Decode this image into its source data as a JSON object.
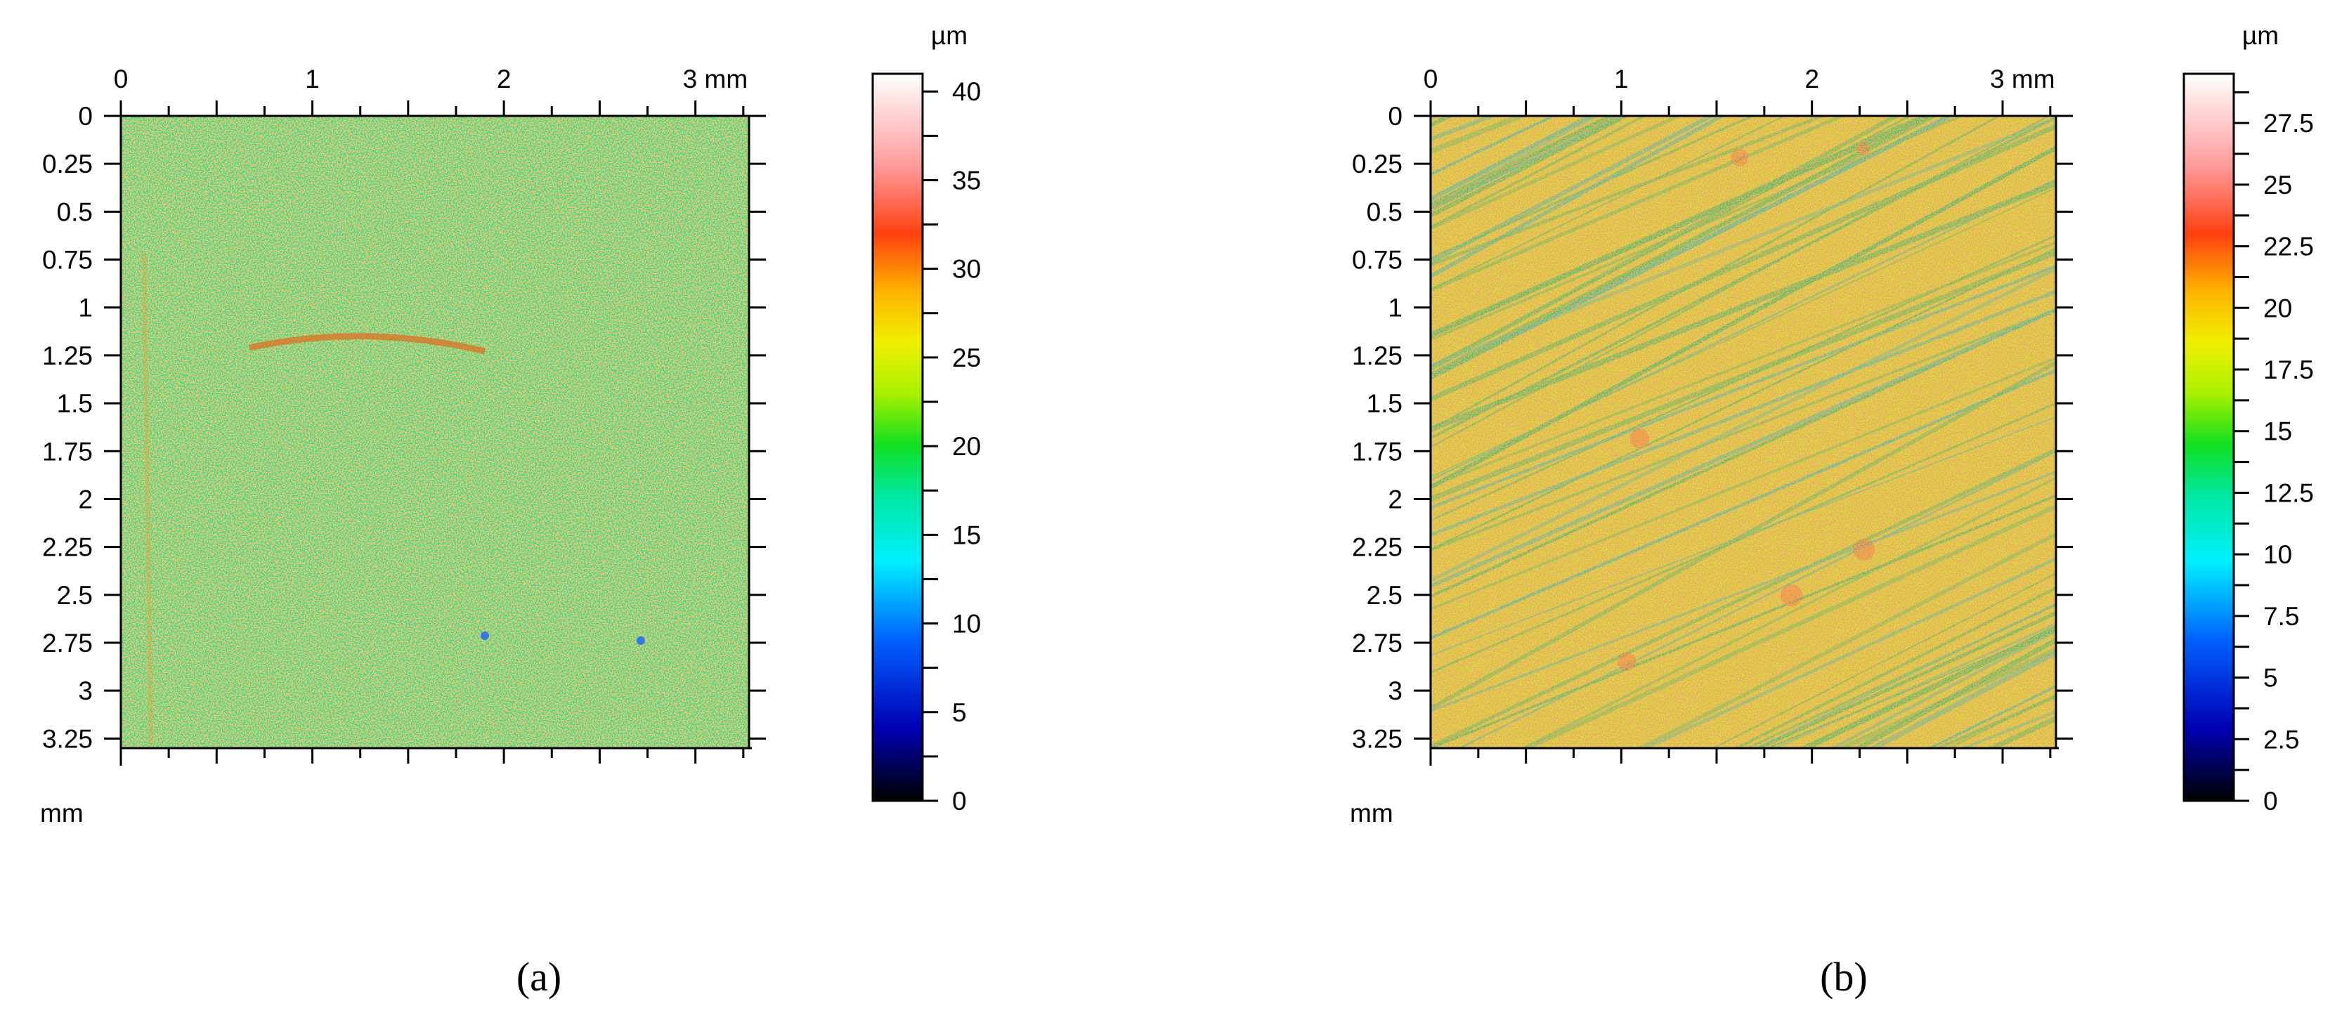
{
  "chart_data": [
    {
      "type": "heatmap",
      "caption": "(a)",
      "x_ticks": [
        "0",
        "1",
        "2",
        "3 mm"
      ],
      "x_tick_values": [
        0,
        1,
        2,
        3
      ],
      "x_range": [
        0,
        3.28
      ],
      "y_ticks": [
        "0",
        "0.25",
        "0.5",
        "0.75",
        "1",
        "1.25",
        "1.5",
        "1.75",
        "2",
        "2.25",
        "2.5",
        "2.75",
        "3",
        "3.25"
      ],
      "y_tick_values": [
        0,
        0.25,
        0.5,
        0.75,
        1,
        1.25,
        1.5,
        1.75,
        2,
        2.25,
        2.5,
        2.75,
        3,
        3.25
      ],
      "y_range": [
        0,
        3.3
      ],
      "axis_unit": "mm",
      "colorbar": {
        "unit": "µm",
        "range": [
          0,
          41
        ],
        "ticks": [
          "0",
          "5",
          "10",
          "15",
          "20",
          "25",
          "30",
          "35",
          "40"
        ],
        "tick_values": [
          0,
          5,
          10,
          15,
          20,
          25,
          30,
          35,
          40
        ]
      },
      "dominant_height_um": 15,
      "texture": "isotropic speckle"
    },
    {
      "type": "heatmap",
      "caption": "(b)",
      "x_ticks": [
        "0",
        "1",
        "2",
        "3 mm"
      ],
      "x_tick_values": [
        0,
        1,
        2,
        3
      ],
      "x_range": [
        0,
        3.28
      ],
      "y_ticks": [
        "0",
        "0.25",
        "0.5",
        "0.75",
        "1",
        "1.25",
        "1.5",
        "1.75",
        "2",
        "2.25",
        "2.5",
        "2.75",
        "3",
        "3.25"
      ],
      "y_tick_values": [
        0,
        0.25,
        0.5,
        0.75,
        1,
        1.25,
        1.5,
        1.75,
        2,
        2.25,
        2.5,
        2.75,
        3,
        3.25
      ],
      "y_range": [
        0,
        3.3
      ],
      "axis_unit": "mm",
      "colorbar": {
        "unit": "µm",
        "range": [
          0,
          29.5
        ],
        "ticks": [
          "0",
          "2.5",
          "5",
          "7.5",
          "10",
          "12.5",
          "15",
          "17.5",
          "20",
          "22.5",
          "25",
          "27.5"
        ],
        "tick_values": [
          0,
          2.5,
          5,
          7.5,
          10,
          12.5,
          15,
          17.5,
          20,
          22.5,
          25,
          27.5
        ]
      },
      "dominant_height_um": 16,
      "texture": "diagonal scratches"
    }
  ]
}
